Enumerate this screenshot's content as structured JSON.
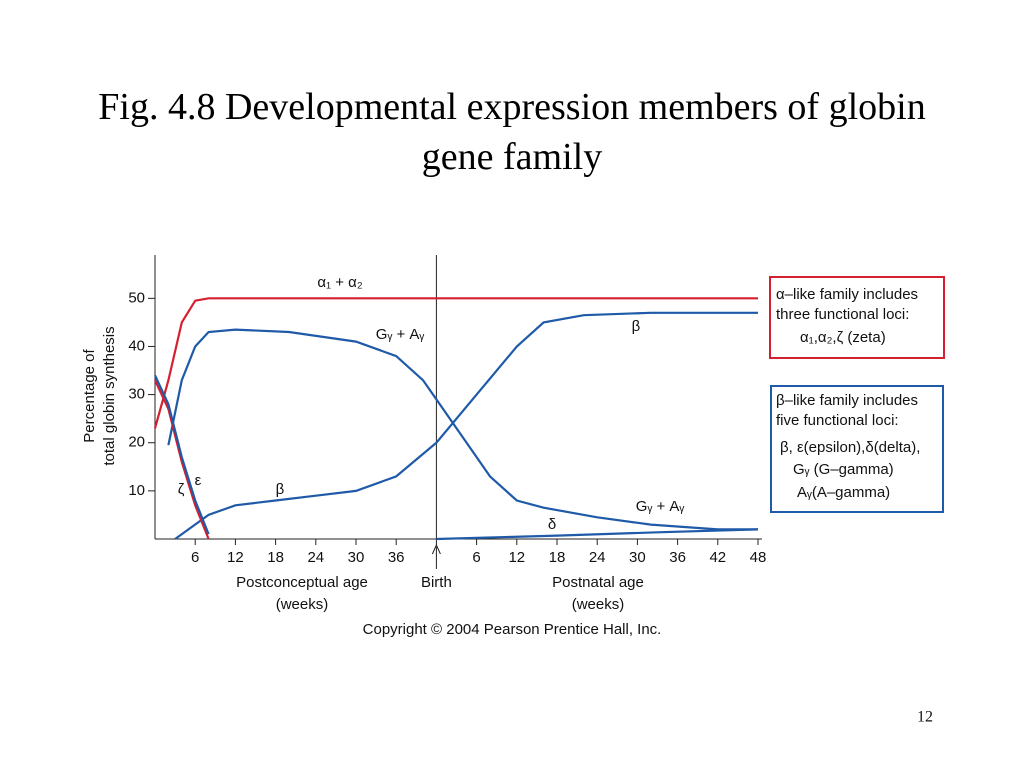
{
  "chart_data": {
    "type": "line",
    "title": "Fig. 4.8 Developmental expression members of globin gene family",
    "ylabel": [
      "Percentage of",
      "total globin synthesis"
    ],
    "xlabel": [
      [
        "Postconceptual age",
        "(weeks)"
      ],
      [
        "Postnatal age",
        "(weeks)"
      ]
    ],
    "credit": "Copyright © 2004 Pearson Prentice Hall, Inc.",
    "xlim": [
      0,
      90
    ],
    "ylim": [
      0,
      59
    ],
    "yticks": [
      10,
      20,
      30,
      40,
      50
    ],
    "xticks": [
      6,
      12,
      18,
      24,
      30,
      36,
      {
        "value": 42,
        "label": "Birth"
      },
      {
        "value": 48,
        "label": "6"
      },
      {
        "value": 54,
        "label": "12"
      },
      {
        "value": 60,
        "label": "18"
      },
      {
        "value": 66,
        "label": "24"
      },
      {
        "value": 72,
        "label": "30"
      },
      {
        "value": 78,
        "label": "36"
      },
      {
        "value": 84,
        "label": "42"
      },
      {
        "value": 90,
        "label": "48"
      }
    ],
    "series": [
      {
        "name": "α₁ + α₂",
        "color": "#d42030",
        "x": [
          0,
          2,
          4,
          6,
          8,
          90
        ],
        "values": [
          23,
          33,
          45,
          49.5,
          50,
          50
        ]
      },
      {
        "name": "Gᵧ + Aᵧ",
        "color": "#1f5aa8",
        "x": [
          2,
          4,
          6,
          8,
          12,
          20,
          30,
          36,
          40,
          42,
          46,
          50,
          54,
          58,
          66,
          74,
          84,
          90
        ],
        "values": [
          19.5,
          33,
          40,
          43,
          43.5,
          43,
          41,
          38,
          33,
          29,
          21,
          13,
          8,
          6.5,
          4.5,
          3,
          2,
          2
        ]
      },
      {
        "name": "β",
        "color": "#1f5aa8",
        "x": [
          3,
          8,
          12,
          18,
          24,
          30,
          36,
          42,
          48,
          54,
          58,
          64,
          74,
          90
        ],
        "values": [
          0,
          5,
          7,
          8,
          9,
          10,
          13,
          20,
          30,
          40,
          45,
          46.5,
          47,
          47
        ]
      },
      {
        "name": "ζ",
        "color": "#d42030",
        "x": [
          0,
          2,
          4,
          6,
          8
        ],
        "values": [
          33,
          27,
          16,
          7,
          0
        ]
      },
      {
        "name": "ε",
        "color": "#1f5aa8",
        "x": [
          0,
          2,
          4,
          6,
          8
        ],
        "values": [
          34,
          28,
          17,
          8,
          1
        ]
      },
      {
        "name": "δ",
        "color": "#1f5aa8",
        "x": [
          42,
          60,
          75,
          90
        ],
        "values": [
          0,
          0.7,
          1.4,
          2
        ]
      }
    ],
    "curve_labels": [
      "Gᵧ + Aᵧ",
      "β"
    ],
    "annotations": [
      {
        "color": "#d42030",
        "lines": [
          "α–like family includes",
          "three functional loci:",
          "α₁,α₂,ζ (zeta)"
        ]
      },
      {
        "color": "#1f5aa8",
        "lines": [
          "β–like family includes",
          "five functional loci:",
          "β, ε(epsilon),δ(delta),",
          "Gᵧ (G–gamma)",
          "Aᵧ(A–gamma)"
        ]
      }
    ]
  },
  "page_number": "12"
}
